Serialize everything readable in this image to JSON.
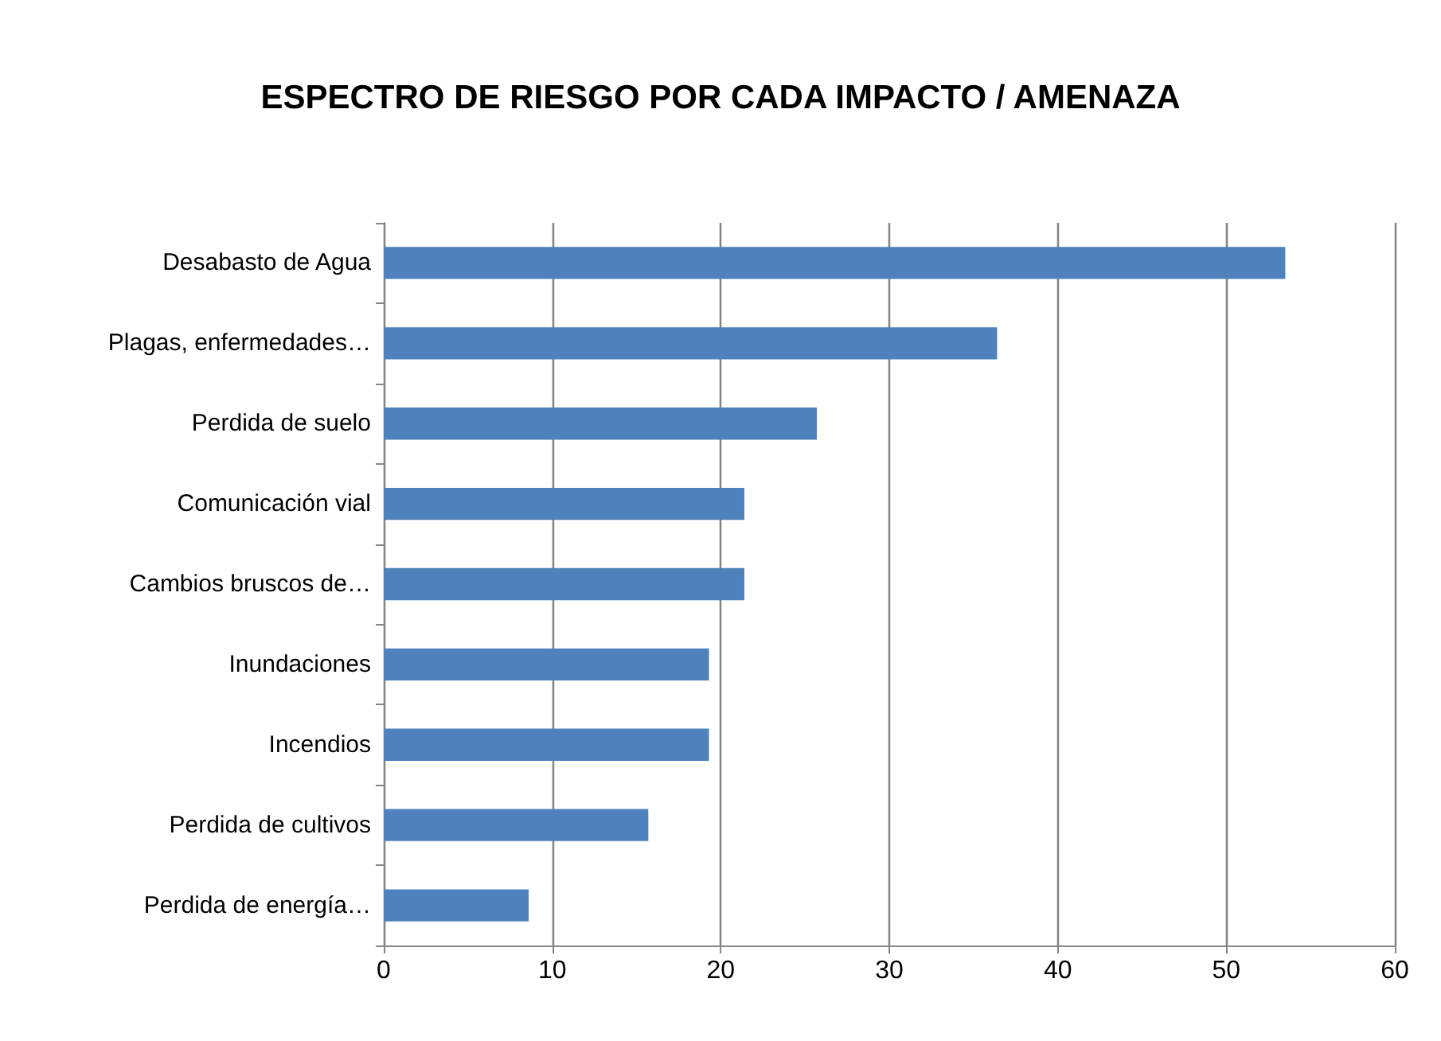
{
  "chart_data": {
    "type": "bar",
    "orientation": "horizontal",
    "title": "ESPECTRO DE RIESGO POR CADA IMPACTO / AMENAZA",
    "categories": [
      "Desabasto de Agua",
      "Plagas, enfermedades…",
      "Perdida de suelo",
      "Comunicación vial",
      "Cambios bruscos de…",
      "Inundaciones",
      "Incendios",
      "Perdida de cultivos",
      "Perdida de energía…"
    ],
    "values": [
      53.5,
      36.4,
      25.7,
      21.4,
      21.4,
      19.3,
      19.3,
      15.7,
      8.6
    ],
    "color": "#4f81bd",
    "xlim": [
      0,
      60
    ],
    "xticks": [
      0,
      10,
      20,
      30,
      40,
      50,
      60
    ],
    "grid": "x"
  }
}
